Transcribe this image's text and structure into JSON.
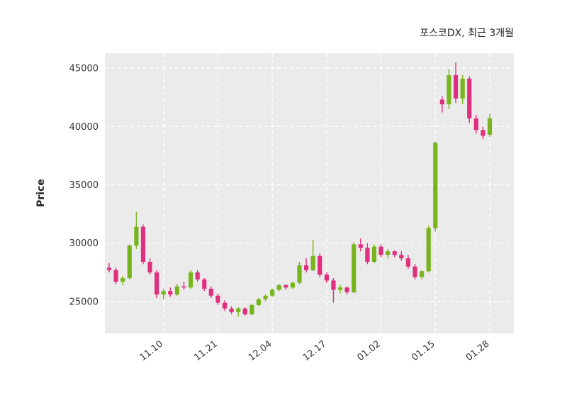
{
  "chart_data": {
    "type": "candlestick",
    "title": "포스코DX, 최근 3개월",
    "ylabel": "Price",
    "y_ticks": [
      25000,
      30000,
      35000,
      40000,
      45000
    ],
    "ylim": [
      22260,
      46280
    ],
    "x_tick_labels": [
      "11.10",
      "11.21",
      "12.04",
      "12.17",
      "01.02",
      "01.15",
      "01.28"
    ],
    "x_tick_indices": [
      8,
      16,
      24,
      32,
      40,
      48,
      56
    ],
    "legend_position": "none",
    "grid": "on",
    "up_color": "#78b41e",
    "down_color": "#df2f7f",
    "plot_bg_color": "#ebebeb",
    "grid_color": "#ffffff",
    "candles_ohlc": [
      [
        27900,
        28300,
        27500,
        27700
      ],
      [
        27700,
        27900,
        26500,
        26700
      ],
      [
        26700,
        27200,
        26400,
        27000
      ],
      [
        27000,
        29900,
        26900,
        29800
      ],
      [
        29800,
        32700,
        29500,
        31400
      ],
      [
        31400,
        31600,
        28200,
        28400
      ],
      [
        28400,
        28700,
        27300,
        27500
      ],
      [
        27500,
        27700,
        25300,
        25600
      ],
      [
        25600,
        26100,
        25200,
        25900
      ],
      [
        25900,
        26200,
        25400,
        25600
      ],
      [
        25600,
        26500,
        25500,
        26300
      ],
      [
        26300,
        26700,
        26000,
        26200
      ],
      [
        26200,
        27700,
        26100,
        27500
      ],
      [
        27500,
        27700,
        26700,
        26900
      ],
      [
        26900,
        27000,
        25900,
        26100
      ],
      [
        26100,
        26300,
        25300,
        25500
      ],
      [
        25500,
        25700,
        24700,
        24900
      ],
      [
        24900,
        25100,
        24200,
        24400
      ],
      [
        24400,
        24600,
        23900,
        24100
      ],
      [
        24100,
        24500,
        23700,
        24400
      ],
      [
        24400,
        24500,
        23800,
        23900
      ],
      [
        23900,
        24800,
        23800,
        24700
      ],
      [
        24700,
        25300,
        24600,
        25200
      ],
      [
        25200,
        25600,
        25000,
        25500
      ],
      [
        25500,
        26100,
        25400,
        26000
      ],
      [
        26000,
        26500,
        25900,
        26400
      ],
      [
        26400,
        26500,
        26000,
        26200
      ],
      [
        26200,
        26700,
        26100,
        26600
      ],
      [
        26600,
        28400,
        26500,
        28100
      ],
      [
        28100,
        28700,
        27500,
        27700
      ],
      [
        27700,
        30300,
        27600,
        28900
      ],
      [
        28900,
        29100,
        27100,
        27300
      ],
      [
        27300,
        27500,
        26600,
        26800
      ],
      [
        26800,
        27000,
        24900,
        26000
      ],
      [
        26000,
        26400,
        25700,
        26200
      ],
      [
        26200,
        26300,
        25600,
        25800
      ],
      [
        25800,
        30100,
        25700,
        29900
      ],
      [
        29900,
        30400,
        29300,
        29600
      ],
      [
        29600,
        30000,
        28200,
        28400
      ],
      [
        28400,
        29900,
        28300,
        29700
      ],
      [
        29700,
        29900,
        28800,
        29000
      ],
      [
        29000,
        29500,
        28700,
        29300
      ],
      [
        29300,
        29400,
        28800,
        29000
      ],
      [
        29000,
        29300,
        28500,
        28700
      ],
      [
        28700,
        29000,
        27800,
        28000
      ],
      [
        28000,
        28200,
        26900,
        27100
      ],
      [
        27100,
        27700,
        26900,
        27600
      ],
      [
        27600,
        31500,
        27500,
        31300
      ],
      [
        31300,
        38700,
        31000,
        38600
      ],
      [
        42300,
        42600,
        41200,
        41900
      ],
      [
        41900,
        44900,
        41500,
        44400
      ],
      [
        44400,
        45500,
        42000,
        42400
      ],
      [
        42400,
        44400,
        41900,
        44100
      ],
      [
        44100,
        44300,
        40300,
        40700
      ],
      [
        40700,
        41000,
        39400,
        39700
      ],
      [
        39700,
        40000,
        38900,
        39200
      ],
      [
        39300,
        41100,
        39100,
        40700
      ]
    ]
  }
}
